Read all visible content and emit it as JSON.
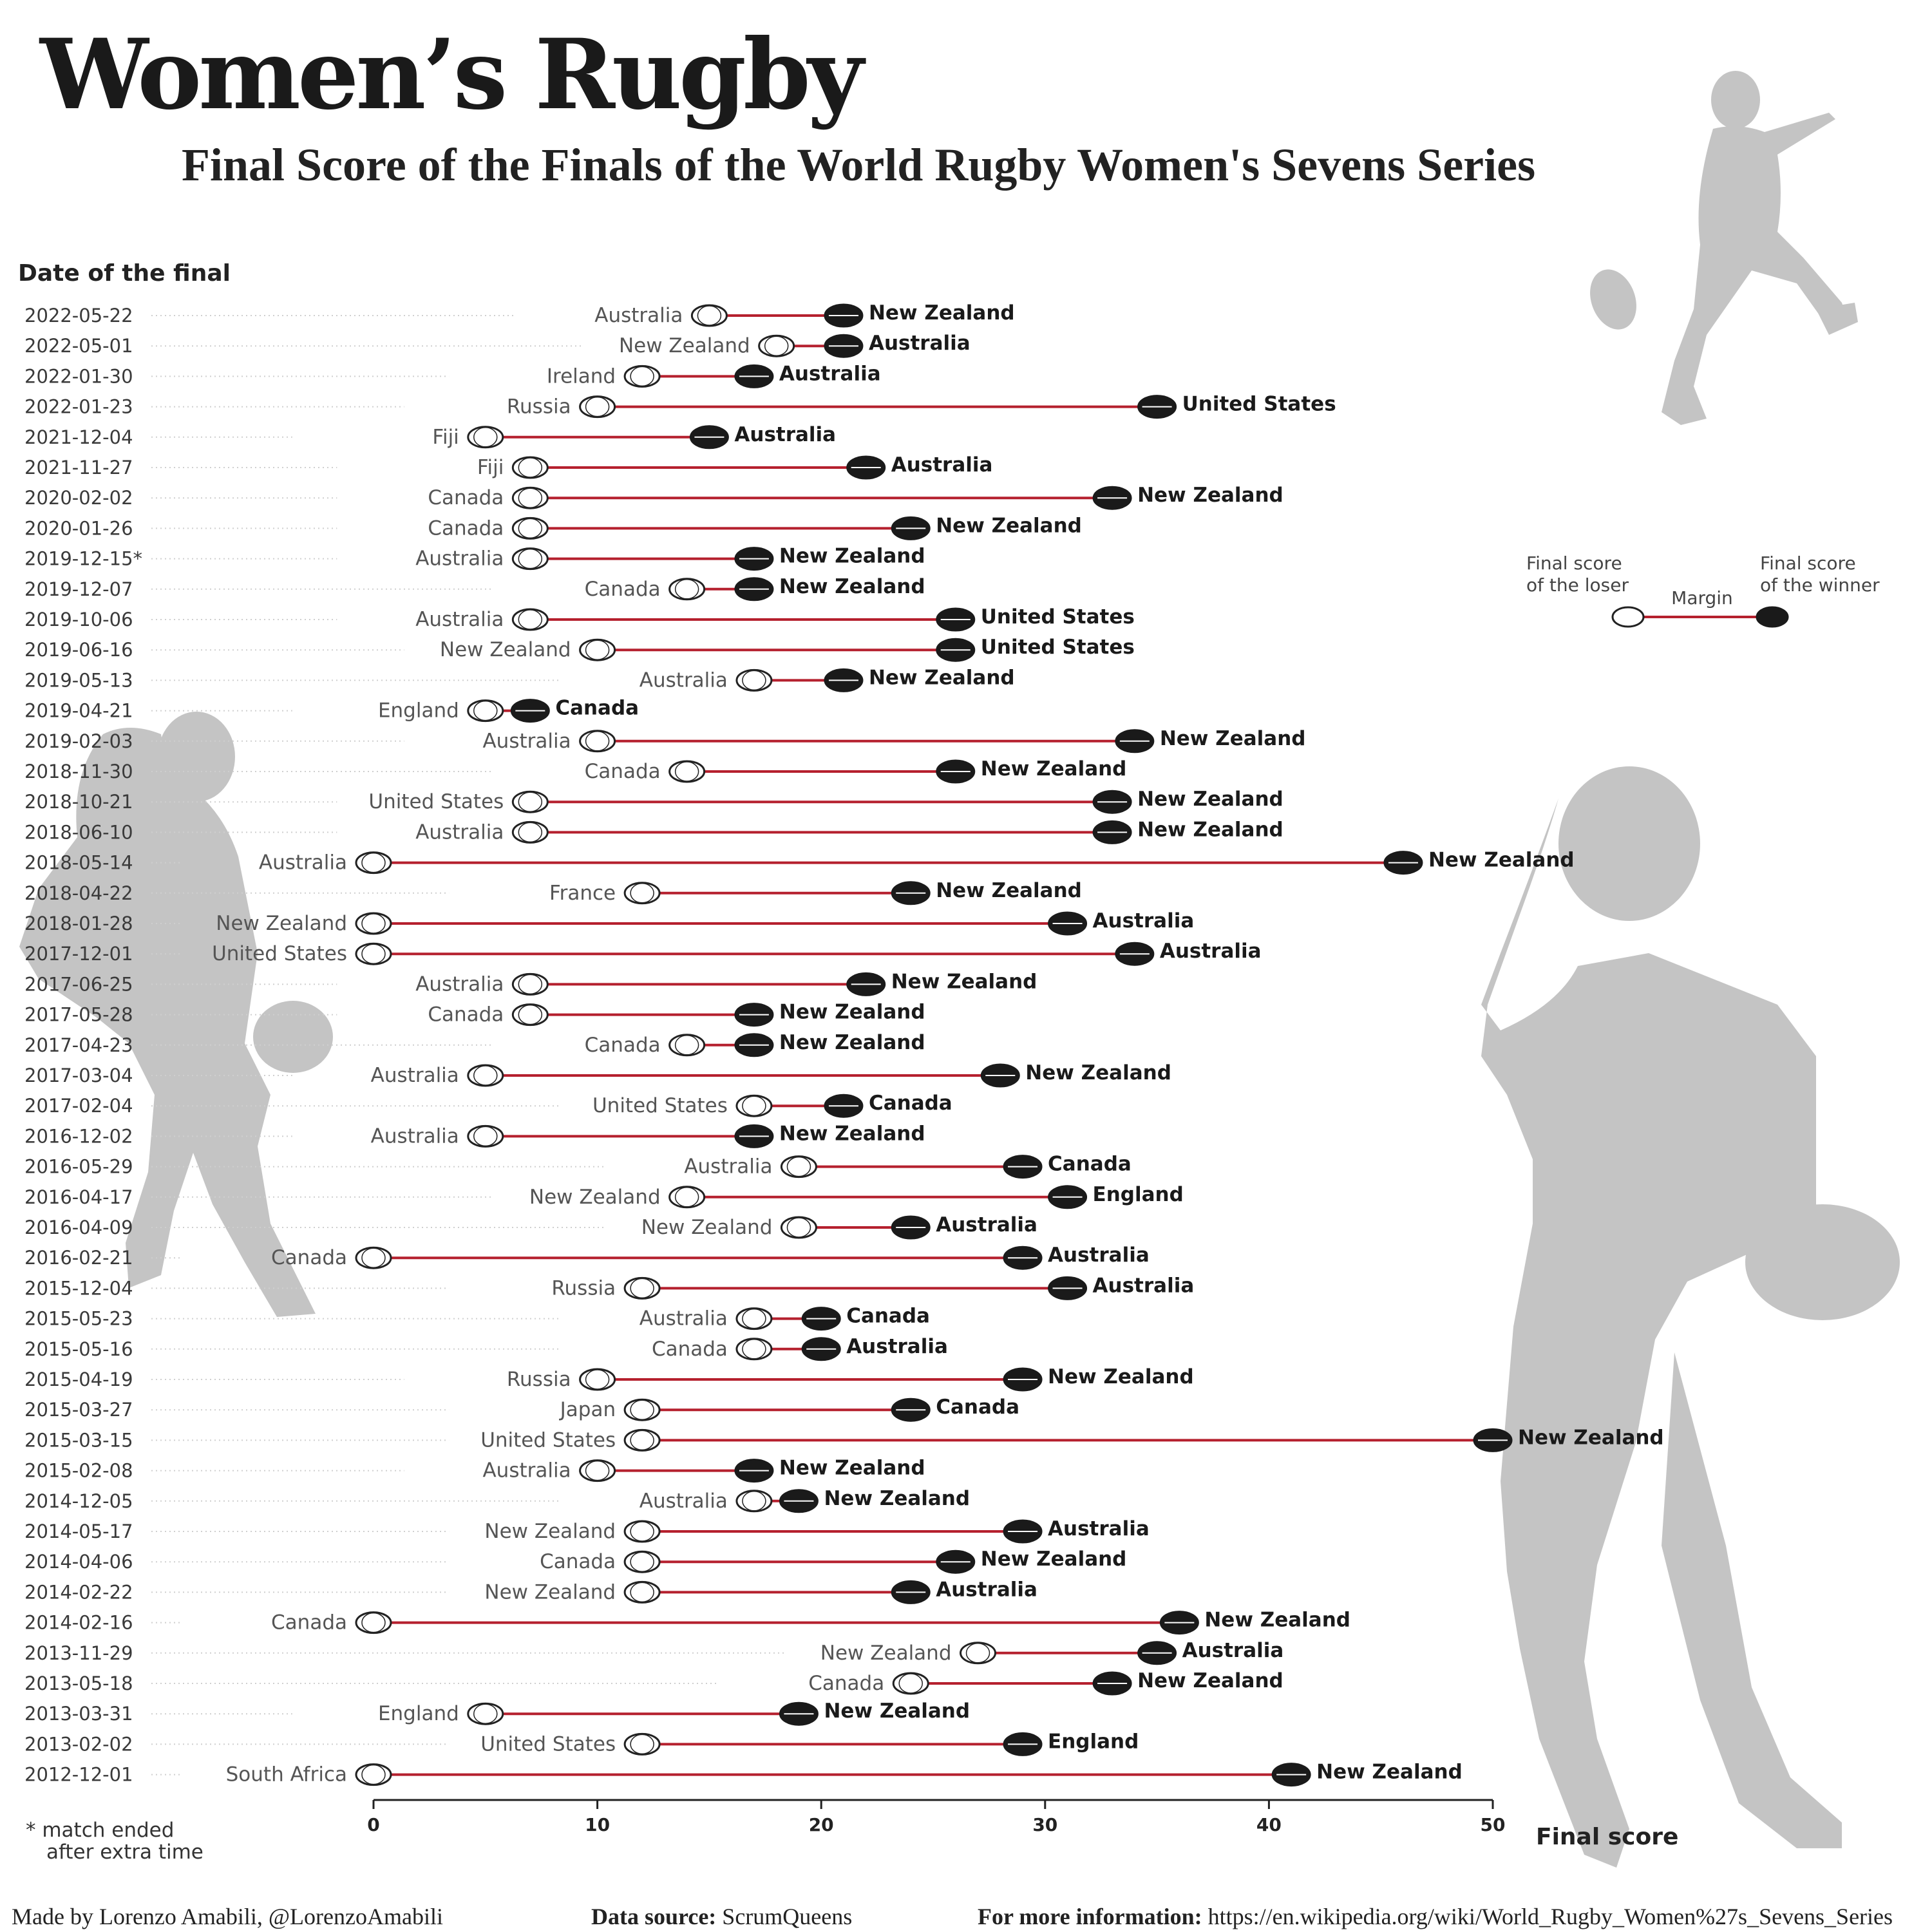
{
  "title": "Women’s Rugby",
  "subtitle": "Final Score of the Finals of the World Rugby Women's Sevens Series",
  "footnote": {
    "line1": "* match ended",
    "line2": "after extra time"
  },
  "legend": {
    "loser": [
      "Final score",
      "of the loser"
    ],
    "margin": "Margin",
    "winner": [
      "Final score",
      "of the winner"
    ]
  },
  "footer": {
    "credit": "Made by Lorenzo Amabili, @LorenzoAmabili",
    "source_label": "Data source:",
    "source_value": "ScrumQueens",
    "info_label": "For more information:",
    "info_value": "https://en.wikipedia.org/wiki/World_Rugby_Women%27s_Sevens_Series"
  },
  "colors": {
    "margin_line": "#b5202e",
    "winner_ball": "#1a1a1a",
    "loser_ball": "#ffffff",
    "silhouette": "#c4c4c4"
  },
  "chart_data": {
    "type": "dumbbell",
    "ylabel": "Date of the final",
    "xlabel": "Final score",
    "xlim": [
      0,
      50
    ],
    "xticks": [
      0,
      10,
      20,
      30,
      40,
      50
    ],
    "finals": [
      {
        "date": "2022-05-22",
        "loser": "Australia",
        "loser_score": 15,
        "winner": "New Zealand",
        "winner_score": 21
      },
      {
        "date": "2022-05-01",
        "loser": "New Zealand",
        "loser_score": 18,
        "winner": "Australia",
        "winner_score": 21
      },
      {
        "date": "2022-01-30",
        "loser": "Ireland",
        "loser_score": 12,
        "winner": "Australia",
        "winner_score": 17
      },
      {
        "date": "2022-01-23",
        "loser": "Russia",
        "loser_score": 10,
        "winner": "United States",
        "winner_score": 35
      },
      {
        "date": "2021-12-04",
        "loser": "Fiji",
        "loser_score": 5,
        "winner": "Australia",
        "winner_score": 15
      },
      {
        "date": "2021-11-27",
        "loser": "Fiji",
        "loser_score": 7,
        "winner": "Australia",
        "winner_score": 22
      },
      {
        "date": "2020-02-02",
        "loser": "Canada",
        "loser_score": 7,
        "winner": "New Zealand",
        "winner_score": 33
      },
      {
        "date": "2020-01-26",
        "loser": "Canada",
        "loser_score": 7,
        "winner": "New Zealand",
        "winner_score": 24
      },
      {
        "date": "2019-12-15*",
        "loser": "Australia",
        "loser_score": 7,
        "winner": "New Zealand",
        "winner_score": 17
      },
      {
        "date": "2019-12-07",
        "loser": "Canada",
        "loser_score": 14,
        "winner": "New Zealand",
        "winner_score": 17
      },
      {
        "date": "2019-10-06",
        "loser": "Australia",
        "loser_score": 7,
        "winner": "United States",
        "winner_score": 26
      },
      {
        "date": "2019-06-16",
        "loser": "New Zealand",
        "loser_score": 10,
        "winner": "United States",
        "winner_score": 26
      },
      {
        "date": "2019-05-13",
        "loser": "Australia",
        "loser_score": 17,
        "winner": "New Zealand",
        "winner_score": 21
      },
      {
        "date": "2019-04-21",
        "loser": "England",
        "loser_score": 5,
        "winner": "Canada",
        "winner_score": 7
      },
      {
        "date": "2019-02-03",
        "loser": "Australia",
        "loser_score": 10,
        "winner": "New Zealand",
        "winner_score": 34
      },
      {
        "date": "2018-11-30",
        "loser": "Canada",
        "loser_score": 14,
        "winner": "New Zealand",
        "winner_score": 26
      },
      {
        "date": "2018-10-21",
        "loser": "United States",
        "loser_score": 7,
        "winner": "New Zealand",
        "winner_score": 33
      },
      {
        "date": "2018-06-10",
        "loser": "Australia",
        "loser_score": 7,
        "winner": "New Zealand",
        "winner_score": 33
      },
      {
        "date": "2018-05-14",
        "loser": "Australia",
        "loser_score": 0,
        "winner": "New Zealand",
        "winner_score": 46
      },
      {
        "date": "2018-04-22",
        "loser": "France",
        "loser_score": 12,
        "winner": "New Zealand",
        "winner_score": 24
      },
      {
        "date": "2018-01-28",
        "loser": "New Zealand",
        "loser_score": 0,
        "winner": "Australia",
        "winner_score": 31
      },
      {
        "date": "2017-12-01",
        "loser": "United States",
        "loser_score": 0,
        "winner": "Australia",
        "winner_score": 34
      },
      {
        "date": "2017-06-25",
        "loser": "Australia",
        "loser_score": 7,
        "winner": "New Zealand",
        "winner_score": 22
      },
      {
        "date": "2017-05-28",
        "loser": "Canada",
        "loser_score": 7,
        "winner": "New Zealand",
        "winner_score": 17
      },
      {
        "date": "2017-04-23",
        "loser": "Canada",
        "loser_score": 14,
        "winner": "New Zealand",
        "winner_score": 17
      },
      {
        "date": "2017-03-04",
        "loser": "Australia",
        "loser_score": 5,
        "winner": "New Zealand",
        "winner_score": 28
      },
      {
        "date": "2017-02-04",
        "loser": "United States",
        "loser_score": 17,
        "winner": "Canada",
        "winner_score": 21
      },
      {
        "date": "2016-12-02",
        "loser": "Australia",
        "loser_score": 5,
        "winner": "New Zealand",
        "winner_score": 17
      },
      {
        "date": "2016-05-29",
        "loser": "Australia",
        "loser_score": 19,
        "winner": "Canada",
        "winner_score": 29
      },
      {
        "date": "2016-04-17",
        "loser": "New Zealand",
        "loser_score": 14,
        "winner": "England",
        "winner_score": 31
      },
      {
        "date": "2016-04-09",
        "loser": "New Zealand",
        "loser_score": 19,
        "winner": "Australia",
        "winner_score": 24
      },
      {
        "date": "2016-02-21",
        "loser": "Canada",
        "loser_score": 0,
        "winner": "Australia",
        "winner_score": 29
      },
      {
        "date": "2015-12-04",
        "loser": "Russia",
        "loser_score": 12,
        "winner": "Australia",
        "winner_score": 31
      },
      {
        "date": "2015-05-23",
        "loser": "Australia",
        "loser_score": 17,
        "winner": "Canada",
        "winner_score": 20
      },
      {
        "date": "2015-05-16",
        "loser": "Canada",
        "loser_score": 17,
        "winner": "Australia",
        "winner_score": 20
      },
      {
        "date": "2015-04-19",
        "loser": "Russia",
        "loser_score": 10,
        "winner": "New Zealand",
        "winner_score": 29
      },
      {
        "date": "2015-03-27",
        "loser": "Japan",
        "loser_score": 12,
        "winner": "Canada",
        "winner_score": 24
      },
      {
        "date": "2015-03-15",
        "loser": "United States",
        "loser_score": 12,
        "winner": "New Zealand",
        "winner_score": 50
      },
      {
        "date": "2015-02-08",
        "loser": "Australia",
        "loser_score": 10,
        "winner": "New Zealand",
        "winner_score": 17
      },
      {
        "date": "2014-12-05",
        "loser": "Australia",
        "loser_score": 17,
        "winner": "New Zealand",
        "winner_score": 19
      },
      {
        "date": "2014-05-17",
        "loser": "New Zealand",
        "loser_score": 12,
        "winner": "Australia",
        "winner_score": 29
      },
      {
        "date": "2014-04-06",
        "loser": "Canada",
        "loser_score": 12,
        "winner": "New Zealand",
        "winner_score": 26
      },
      {
        "date": "2014-02-22",
        "loser": "New Zealand",
        "loser_score": 12,
        "winner": "Australia",
        "winner_score": 24
      },
      {
        "date": "2014-02-16",
        "loser": "Canada",
        "loser_score": 0,
        "winner": "New Zealand",
        "winner_score": 36
      },
      {
        "date": "2013-11-29",
        "loser": "New Zealand",
        "loser_score": 27,
        "winner": "Australia",
        "winner_score": 35
      },
      {
        "date": "2013-05-18",
        "loser": "Canada",
        "loser_score": 24,
        "winner": "New Zealand",
        "winner_score": 33
      },
      {
        "date": "2013-03-31",
        "loser": "England",
        "loser_score": 5,
        "winner": "New Zealand",
        "winner_score": 19
      },
      {
        "date": "2013-02-02",
        "loser": "United States",
        "loser_score": 12,
        "winner": "England",
        "winner_score": 29
      },
      {
        "date": "2012-12-01",
        "loser": "South Africa",
        "loser_score": 0,
        "winner": "New Zealand",
        "winner_score": 41
      }
    ]
  }
}
